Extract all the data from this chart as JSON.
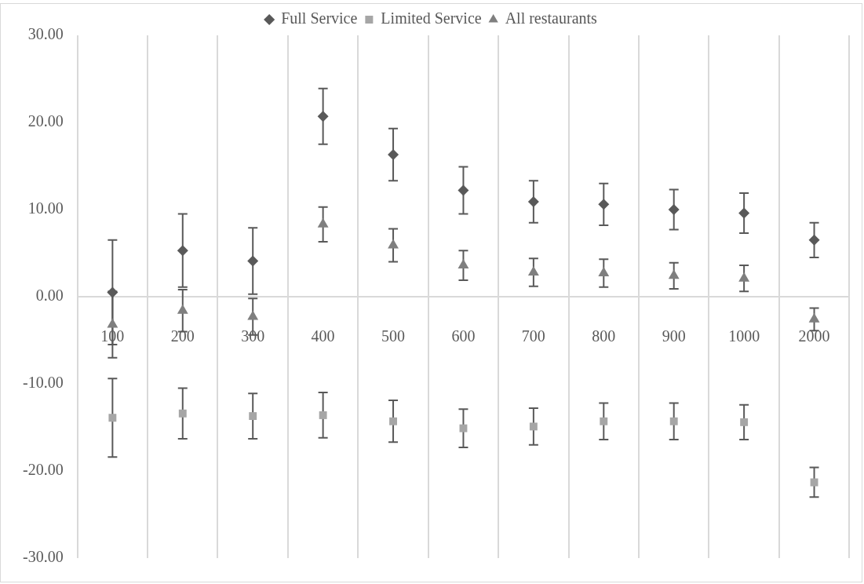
{
  "chart_data": {
    "type": "scatter",
    "categories": [
      "100",
      "200",
      "300",
      "400",
      "500",
      "600",
      "700",
      "800",
      "900",
      "1000",
      "2000"
    ],
    "series": [
      {
        "name": "Full Service",
        "color": "#595959",
        "marker": "diamond",
        "values": [
          0.5,
          5.3,
          4.1,
          20.7,
          16.3,
          12.2,
          10.9,
          10.6,
          10.0,
          9.6,
          6.5
        ],
        "errors": [
          6.0,
          4.2,
          3.8,
          3.2,
          3.0,
          2.7,
          2.4,
          2.4,
          2.3,
          2.3,
          2.0
        ]
      },
      {
        "name": "Limited Service",
        "color": "#a6a6a6",
        "marker": "square",
        "values": [
          -13.9,
          -13.4,
          -13.7,
          -13.6,
          -14.3,
          -15.1,
          -14.9,
          -14.3,
          -14.3,
          -14.4,
          -21.3
        ],
        "errors": [
          4.5,
          2.9,
          2.6,
          2.6,
          2.4,
          2.2,
          2.1,
          2.1,
          2.1,
          2.0,
          1.7
        ]
      },
      {
        "name": "All restaurants",
        "color": "#7f7f7f",
        "marker": "triangle",
        "values": [
          -3.2,
          -1.6,
          -2.3,
          8.3,
          5.9,
          3.6,
          2.8,
          2.7,
          2.4,
          2.1,
          -2.6
        ],
        "errors": [
          3.8,
          2.4,
          2.1,
          2.0,
          1.9,
          1.7,
          1.6,
          1.6,
          1.5,
          1.5,
          1.3
        ]
      }
    ],
    "ylim": [
      -30,
      30
    ],
    "yticks": [
      {
        "value": -30,
        "label": "-30.00"
      },
      {
        "value": -20,
        "label": "-20.00"
      },
      {
        "value": -10,
        "label": "-10.00"
      },
      {
        "value": 0,
        "label": "0.00"
      },
      {
        "value": 10,
        "label": "10.00"
      },
      {
        "value": 20,
        "label": "20.00"
      },
      {
        "value": 30,
        "label": "30.00"
      }
    ],
    "grid": "x",
    "legend": "top"
  }
}
